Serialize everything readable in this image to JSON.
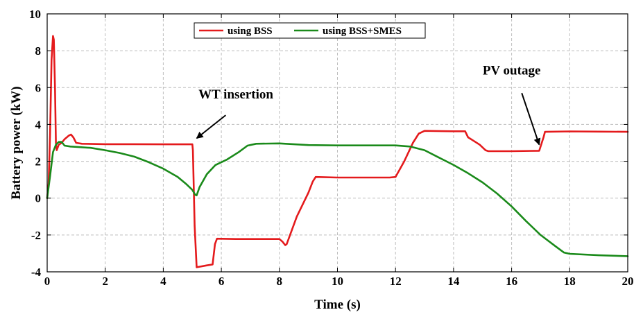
{
  "chart_data": {
    "type": "line",
    "title": "",
    "xlabel": "Time (s)",
    "ylabel": "Battery power (kW)",
    "xlim": [
      0,
      20
    ],
    "ylim": [
      -4,
      10
    ],
    "x_ticks": [
      0,
      2,
      4,
      6,
      8,
      10,
      12,
      14,
      16,
      18,
      20
    ],
    "y_ticks": [
      -4,
      -2,
      0,
      2,
      4,
      6,
      8,
      10
    ],
    "grid": true,
    "legend_position": "top-center",
    "series": [
      {
        "name": "using BSS",
        "color": "#e41a1c",
        "points": [
          [
            0,
            0
          ],
          [
            0.05,
            0.8
          ],
          [
            0.1,
            3.5
          ],
          [
            0.15,
            7.5
          ],
          [
            0.2,
            8.8
          ],
          [
            0.23,
            8.6
          ],
          [
            0.27,
            6.0
          ],
          [
            0.3,
            3.0
          ],
          [
            0.33,
            2.6
          ],
          [
            0.4,
            2.9
          ],
          [
            0.5,
            3.0
          ],
          [
            0.6,
            3.2
          ],
          [
            0.75,
            3.4
          ],
          [
            0.82,
            3.45
          ],
          [
            0.9,
            3.3
          ],
          [
            1.0,
            3.0
          ],
          [
            1.2,
            2.95
          ],
          [
            2.0,
            2.93
          ],
          [
            3.0,
            2.93
          ],
          [
            4.0,
            2.92
          ],
          [
            5.0,
            2.92
          ],
          [
            5.02,
            2.6
          ],
          [
            5.08,
            -1.5
          ],
          [
            5.15,
            -3.75
          ],
          [
            5.5,
            -3.65
          ],
          [
            5.7,
            -3.6
          ],
          [
            5.78,
            -2.5
          ],
          [
            5.85,
            -2.2
          ],
          [
            6.5,
            -2.22
          ],
          [
            7.5,
            -2.22
          ],
          [
            8.0,
            -2.22
          ],
          [
            8.1,
            -2.35
          ],
          [
            8.2,
            -2.55
          ],
          [
            8.25,
            -2.5
          ],
          [
            8.6,
            -1.0
          ],
          [
            9.0,
            0.3
          ],
          [
            9.15,
            0.9
          ],
          [
            9.25,
            1.15
          ],
          [
            10.0,
            1.12
          ],
          [
            11.0,
            1.12
          ],
          [
            11.8,
            1.12
          ],
          [
            12.0,
            1.15
          ],
          [
            12.3,
            2.0
          ],
          [
            12.6,
            3.0
          ],
          [
            12.8,
            3.5
          ],
          [
            13.0,
            3.65
          ],
          [
            14.0,
            3.63
          ],
          [
            14.4,
            3.63
          ],
          [
            14.5,
            3.3
          ],
          [
            14.7,
            3.1
          ],
          [
            14.9,
            2.9
          ],
          [
            15.1,
            2.6
          ],
          [
            15.2,
            2.55
          ],
          [
            16.0,
            2.55
          ],
          [
            16.95,
            2.57
          ],
          [
            17.1,
            3.3
          ],
          [
            17.15,
            3.6
          ],
          [
            18.0,
            3.62
          ],
          [
            19.0,
            3.61
          ],
          [
            20.0,
            3.6
          ]
        ]
      },
      {
        "name": "using BSS+SMES",
        "color": "#1a8a1a",
        "points": [
          [
            0,
            0
          ],
          [
            0.1,
            1.2
          ],
          [
            0.2,
            2.5
          ],
          [
            0.3,
            2.9
          ],
          [
            0.4,
            3.05
          ],
          [
            0.5,
            3.05
          ],
          [
            0.6,
            2.85
          ],
          [
            0.8,
            2.8
          ],
          [
            1.0,
            2.78
          ],
          [
            1.5,
            2.73
          ],
          [
            2.0,
            2.6
          ],
          [
            2.5,
            2.45
          ],
          [
            3.0,
            2.25
          ],
          [
            3.5,
            1.95
          ],
          [
            4.0,
            1.6
          ],
          [
            4.5,
            1.15
          ],
          [
            4.8,
            0.75
          ],
          [
            5.0,
            0.45
          ],
          [
            5.1,
            0.18
          ],
          [
            5.15,
            0.15
          ],
          [
            5.25,
            0.6
          ],
          [
            5.5,
            1.3
          ],
          [
            5.8,
            1.8
          ],
          [
            6.2,
            2.1
          ],
          [
            6.6,
            2.5
          ],
          [
            6.9,
            2.85
          ],
          [
            7.2,
            2.95
          ],
          [
            8.0,
            2.97
          ],
          [
            9.0,
            2.88
          ],
          [
            10.0,
            2.86
          ],
          [
            11.0,
            2.86
          ],
          [
            12.0,
            2.86
          ],
          [
            12.5,
            2.8
          ],
          [
            13.0,
            2.6
          ],
          [
            13.5,
            2.2
          ],
          [
            14.0,
            1.8
          ],
          [
            14.5,
            1.35
          ],
          [
            15.0,
            0.85
          ],
          [
            15.5,
            0.25
          ],
          [
            16.0,
            -0.45
          ],
          [
            16.5,
            -1.25
          ],
          [
            17.0,
            -2.0
          ],
          [
            17.5,
            -2.6
          ],
          [
            17.8,
            -2.95
          ],
          [
            18.0,
            -3.02
          ],
          [
            19.0,
            -3.1
          ],
          [
            20.0,
            -3.15
          ]
        ]
      }
    ],
    "annotations": [
      {
        "text": "WT insertion",
        "x": 6.5,
        "y": 5.4,
        "arrow_tail": [
          6.15,
          4.5
        ],
        "arrow_head": [
          5.15,
          3.25
        ]
      },
      {
        "text": "PV outage",
        "x": 16.0,
        "y": 6.7,
        "arrow_tail": [
          16.35,
          5.7
        ],
        "arrow_head": [
          16.95,
          2.9
        ]
      }
    ]
  }
}
